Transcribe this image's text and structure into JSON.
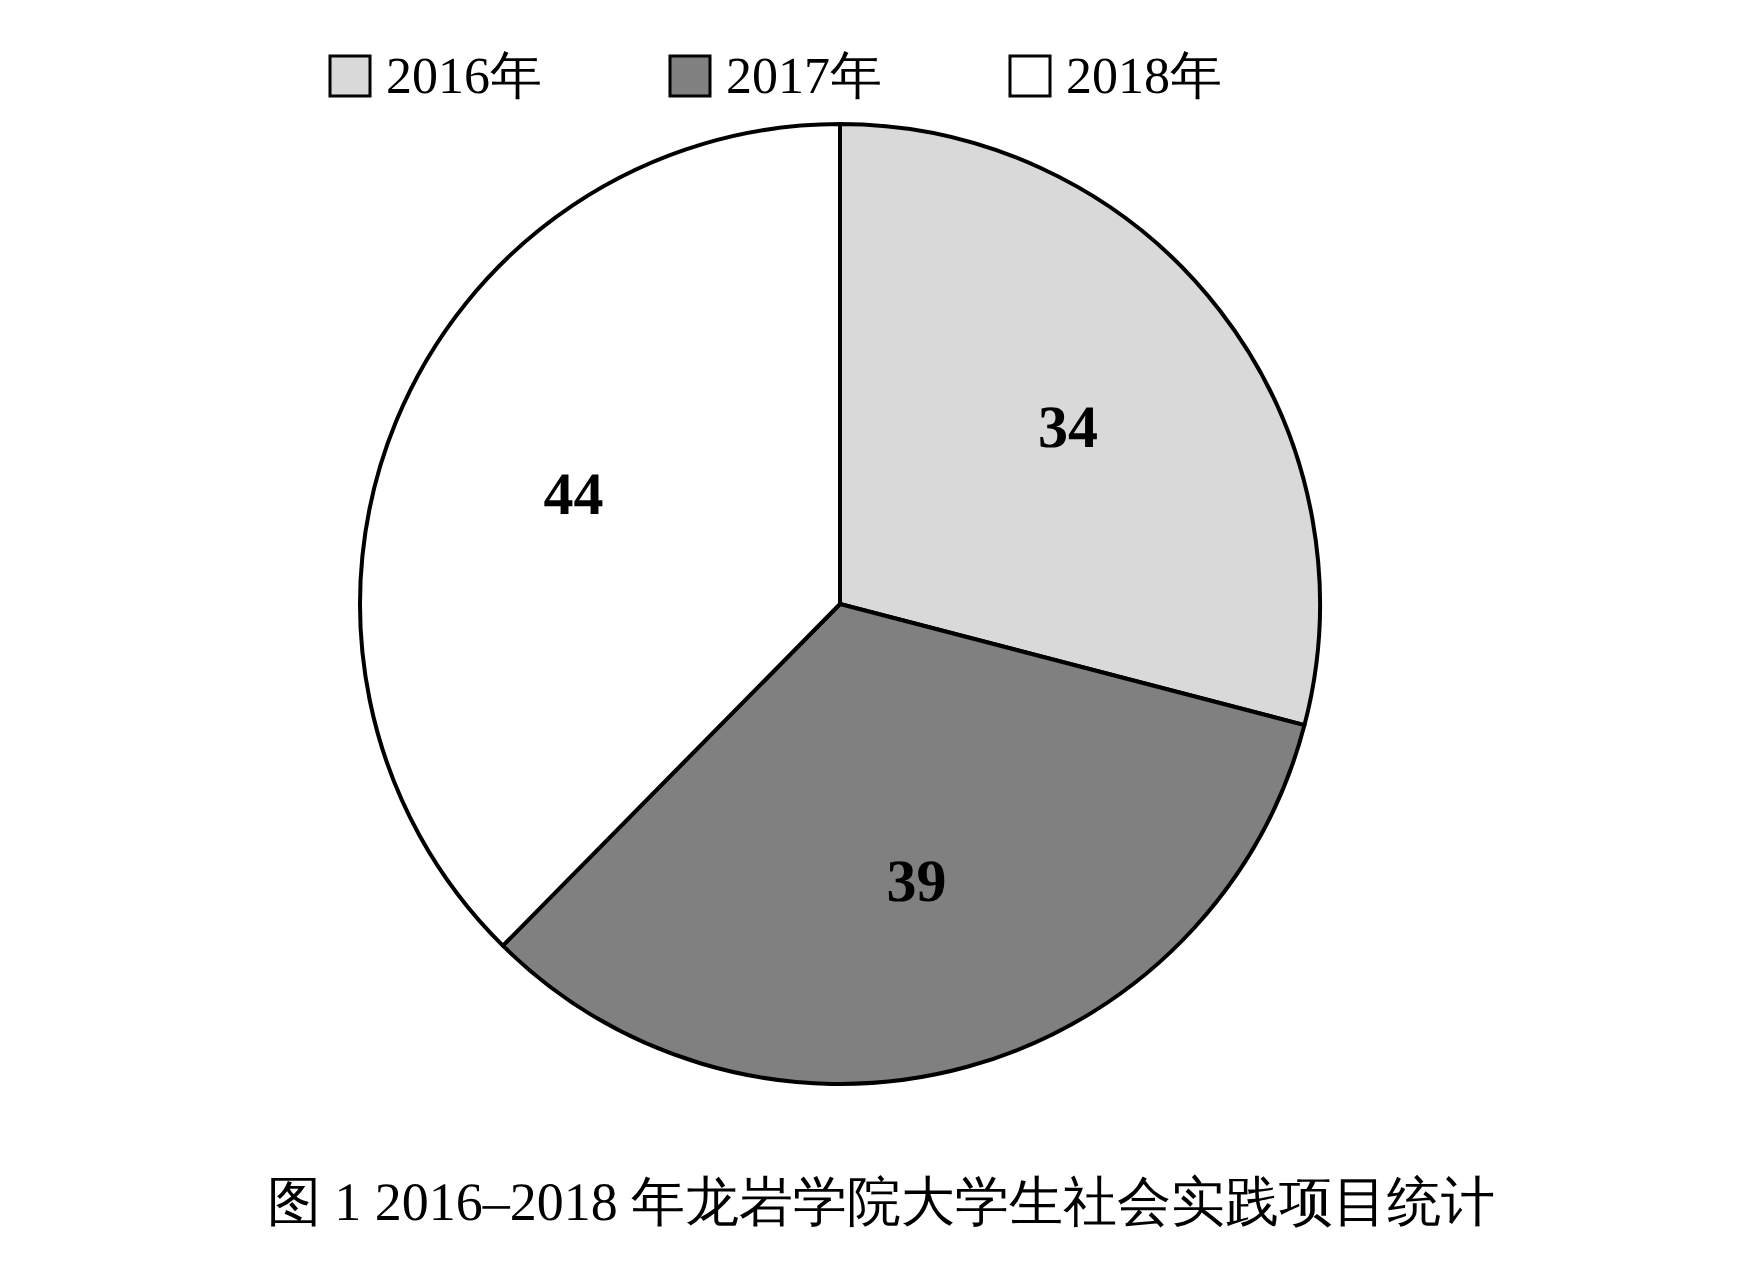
{
  "chart_data": {
    "type": "pie",
    "title": "图 1 2016–2018 年龙岩学院大学生社会实践项目统计",
    "categories": [
      "2016年",
      "2017年",
      "2018年"
    ],
    "values": [
      34,
      39,
      44
    ],
    "colors": [
      "#d9d9d9",
      "#808080",
      "#ffffff"
    ],
    "data_labels": true,
    "legend": "top"
  }
}
